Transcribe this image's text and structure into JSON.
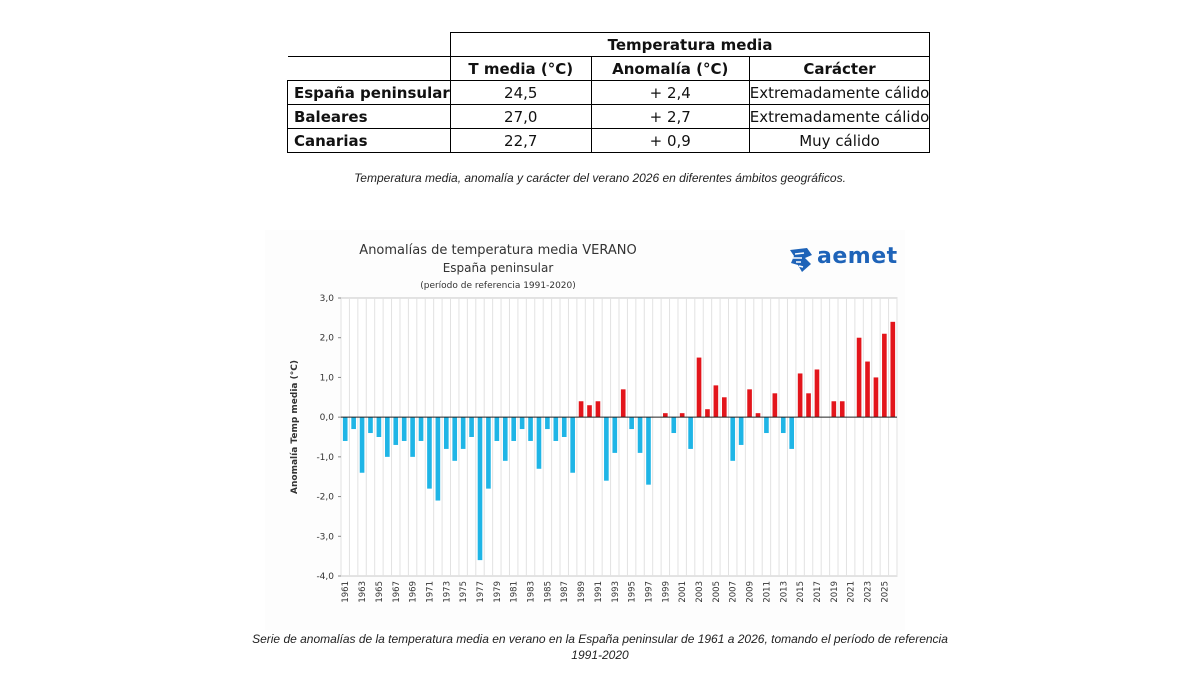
{
  "table": {
    "title": "Temperatura media",
    "headers": [
      "T media (°C)",
      "Anomalía (°C)",
      "Carácter"
    ],
    "rows": [
      {
        "region": "España peninsular",
        "t_media": "24,5",
        "anomalia": "+ 2,4",
        "caracter": "Extremadamente cálido"
      },
      {
        "region": "Baleares",
        "t_media": "27,0",
        "anomalia": "+ 2,7",
        "caracter": "Extremadamente cálido"
      },
      {
        "region": "Canarias",
        "t_media": "22,7",
        "anomalia": "+ 0,9",
        "caracter": "Muy cálido"
      }
    ],
    "caption": "Temperatura media, anomalía y carácter del verano 2026 en diferentes ámbitos geográficos."
  },
  "chart_caption": "Serie de anomalías de la temperatura media en verano en la España peninsular de 1961 a 2026, tomando el período de referencia 1991-2020",
  "logo": {
    "text": "aemet",
    "color": "#1e63b8"
  },
  "chart_data": {
    "type": "bar",
    "title": "Anomalías de temperatura media VERANO",
    "subtitle": "España peninsular",
    "note": "(período de referencia 1991-2020)",
    "ylabel": "Anomalía Temp media (°C)",
    "xlabel": "",
    "ylim": [
      -4.0,
      3.0
    ],
    "ytick_values": [
      -4.0,
      -3.0,
      -2.0,
      -1.0,
      0.0,
      1.0,
      2.0,
      3.0
    ],
    "ytick_labels": [
      "-4,0",
      "-3,0",
      "-2,0",
      "-1,0",
      "0,0",
      "1,0",
      "2,0",
      "3,0"
    ],
    "grid": "vertical",
    "colors": {
      "negative": "#1fb5e6",
      "positive": "#e3151b"
    },
    "x_tick_labels": [
      "1961",
      "1963",
      "1965",
      "1967",
      "1969",
      "1971",
      "1973",
      "1975",
      "1977",
      "1979",
      "1981",
      "1983",
      "1985",
      "1987",
      "1989",
      "1991",
      "1993",
      "1995",
      "1997",
      "1999",
      "2001",
      "2003",
      "2005",
      "2007",
      "2009",
      "2011",
      "2013",
      "2015",
      "2017",
      "2019",
      "2021",
      "2023",
      "2025"
    ],
    "years": [
      1961,
      1962,
      1963,
      1964,
      1965,
      1966,
      1967,
      1968,
      1969,
      1970,
      1971,
      1972,
      1973,
      1974,
      1975,
      1976,
      1977,
      1978,
      1979,
      1980,
      1981,
      1982,
      1983,
      1984,
      1985,
      1986,
      1987,
      1988,
      1989,
      1990,
      1991,
      1992,
      1993,
      1994,
      1995,
      1996,
      1997,
      1998,
      1999,
      2000,
      2001,
      2002,
      2003,
      2004,
      2005,
      2006,
      2007,
      2008,
      2009,
      2010,
      2011,
      2012,
      2013,
      2014,
      2015,
      2016,
      2017,
      2018,
      2019,
      2020,
      2021,
      2022,
      2023,
      2024,
      2025,
      2026
    ],
    "values": [
      -0.6,
      -0.3,
      -1.4,
      -0.4,
      -0.5,
      -1.0,
      -0.7,
      -0.6,
      -1.0,
      -0.6,
      -1.8,
      -2.1,
      -0.8,
      -1.1,
      -0.8,
      -0.5,
      -3.6,
      -1.8,
      -0.6,
      -1.1,
      -0.6,
      -0.3,
      -0.6,
      -1.3,
      -0.3,
      -0.6,
      -0.5,
      -1.4,
      0.4,
      0.3,
      0.4,
      -1.6,
      -0.9,
      0.7,
      -0.3,
      -0.9,
      -1.7,
      0.0,
      0.1,
      -0.4,
      0.1,
      -0.8,
      1.5,
      0.2,
      0.8,
      0.5,
      -1.1,
      -0.7,
      0.7,
      0.1,
      -0.4,
      0.6,
      -0.4,
      -0.8,
      1.1,
      0.6,
      1.2,
      0.0,
      0.4,
      0.4,
      0.0,
      2.0,
      1.4,
      1.0,
      2.1,
      2.4
    ]
  }
}
